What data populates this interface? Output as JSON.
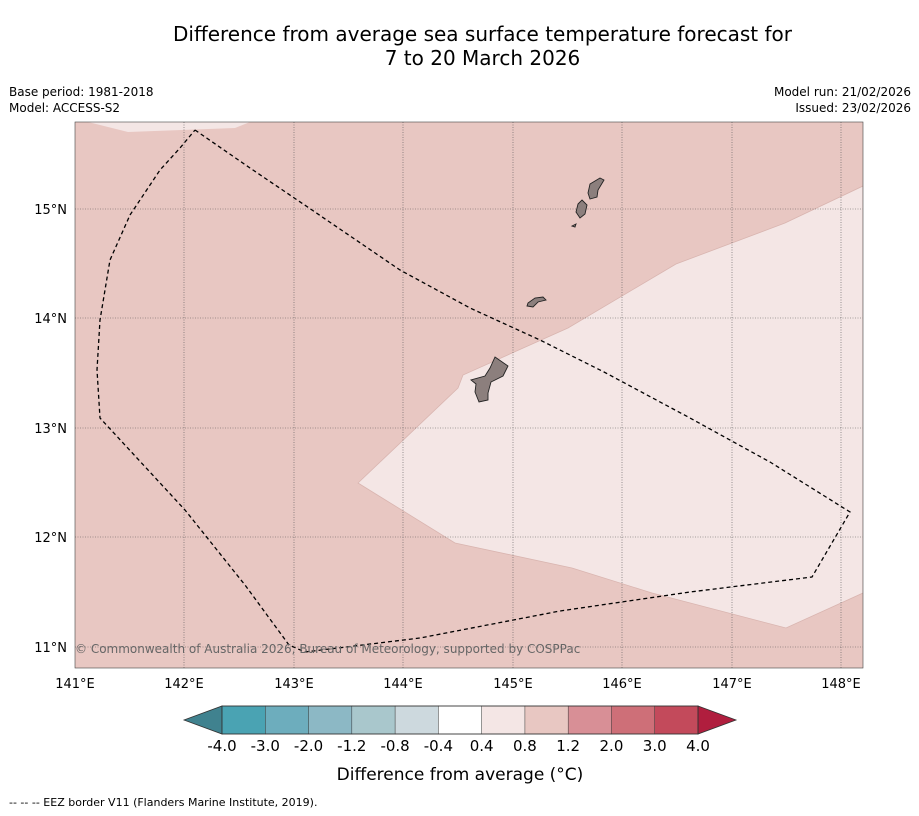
{
  "title": {
    "line1": "Difference from average sea surface temperature forecast for",
    "line2": "7 to 20 March 2026"
  },
  "meta": {
    "base_period": "Base period: 1981-2018",
    "model": "Model: ACCESS-S2",
    "model_run": "Model run: 21/02/2026",
    "issued": "Issued: 23/02/2026"
  },
  "map": {
    "lon_range": [
      141.0,
      148.2
    ],
    "lat_range": [
      10.8,
      15.8
    ],
    "lon_ticks": [
      "141°E",
      "142°E",
      "143°E",
      "144°E",
      "145°E",
      "146°E",
      "147°E",
      "148°E"
    ],
    "lat_ticks": [
      "15°N",
      "14°N",
      "13°N",
      "12°N",
      "11°N"
    ],
    "background_category": "0.8 to 1.2",
    "region_category": "0.4 to 0.8",
    "copyright": "© Commonwealth of Australia 2026, Bureau of Meteorology, supported by COSPPac",
    "eez_name": "EEZ border",
    "land_name": "Guam and Northern Mariana Islands"
  },
  "colorbar": {
    "label": "Difference from average (°C)",
    "ticks": [
      "-4.0",
      "-3.0",
      "-2.0",
      "-1.2",
      "-0.8",
      "-0.4",
      "0.4",
      "0.8",
      "1.2",
      "2.0",
      "3.0",
      "4.0"
    ],
    "under_color": "#40828f",
    "over_color": "#b01e3e",
    "colors": [
      "#4aa3b3",
      "#6dadbd",
      "#8cb8c5",
      "#a9c7cc",
      "#cdd9de",
      "#ffffff",
      "#f4e6e5",
      "#e8c7c2",
      "#d88f96",
      "#ce6f78",
      "#c34a5b"
    ]
  },
  "footnote": "--  --  -- EEZ border V11 (Flanders Marine Institute, 2019)."
}
